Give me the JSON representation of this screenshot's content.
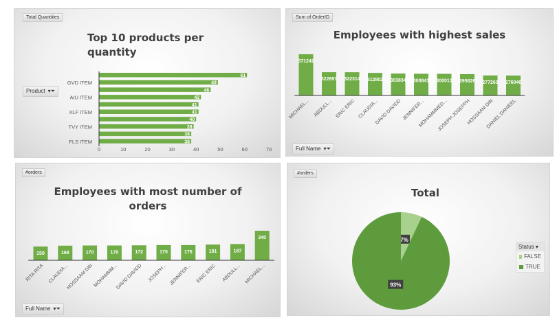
{
  "colors": {
    "bar": "#70ad47",
    "pie_true": "#5e9b3c",
    "pie_false": "#a9d18e",
    "label_bg": "#404040"
  },
  "chart_data": [
    {
      "type": "bar",
      "orientation": "horizontal",
      "field_tag": "Total Quantities",
      "title_lines": [
        "Top 10 products per",
        "quantity"
      ],
      "filter_label": "Product",
      "categories": [
        "",
        "GVD ITEM",
        "",
        "AIU ITEM",
        "",
        "XLF ITEM",
        "",
        "TVY ITEM",
        "",
        "FLS ITEM"
      ],
      "values": [
        61,
        49,
        46,
        42,
        41,
        41,
        40,
        39,
        38,
        38
      ],
      "xlim": [
        0,
        70
      ],
      "xticks": [
        "0",
        "10",
        "20",
        "30",
        "40",
        "50",
        "60",
        "70"
      ]
    },
    {
      "type": "bar",
      "field_tag": "Sum of OrderID",
      "title_lines": [
        "Employees with highest sales"
      ],
      "filter_label": "Full Name",
      "categories": [
        "MICHAEL...",
        "ABDULL...",
        "ERIC ERIC",
        "CLAUDIA...",
        "DAVID DAVIDD",
        "JENNIFER...",
        "MOHAMMMED...",
        "JOSEPH JOSEPPH",
        "HOSSAAM DIN",
        "DANIEL DANIEEL"
      ],
      "values": [
        571242,
        322697,
        322314,
        312802,
        303834,
        300841,
        300013,
        295826,
        277261,
        276046
      ]
    },
    {
      "type": "bar",
      "field_tag": "#orders",
      "title_lines": [
        "Employees with most number of",
        "orders"
      ],
      "filter_label": "Full Name",
      "categories": [
        "RITA RITA",
        "CLAUDIA...",
        "HOSSAAM DIN",
        "MOHAMMM...",
        "DAVID DAVIDD",
        "JOSEPH...",
        "JENNIFER...",
        "ERIC ERIC",
        "ABDULL...",
        "MICHAEL..."
      ],
      "values": [
        159,
        168,
        170,
        170,
        172,
        175,
        175,
        181,
        187,
        340
      ]
    },
    {
      "type": "pie",
      "field_tag": "#orders",
      "title_lines": [
        "Total"
      ],
      "legend_title": "Status",
      "slices": [
        {
          "name": "FALSE",
          "value": 7,
          "label": "7%"
        },
        {
          "name": "TRUE",
          "value": 93,
          "label": "93%"
        }
      ]
    }
  ]
}
